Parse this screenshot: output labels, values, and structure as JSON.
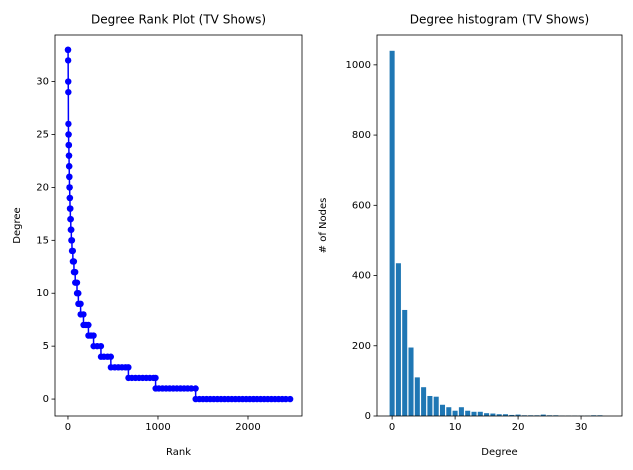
{
  "chart_data": [
    {
      "type": "line",
      "title": "Degree Rank Plot (TV Shows)",
      "x_label": "Rank",
      "y_label": "Degree",
      "color": "#0000ff",
      "markers": true,
      "x": [
        0,
        1,
        2,
        3,
        4,
        5,
        6,
        7,
        8,
        10,
        11,
        12,
        13,
        14,
        15,
        16,
        17,
        19,
        20,
        22,
        23,
        26,
        27,
        31,
        32,
        37,
        38,
        44,
        45,
        54,
        55,
        66,
        67,
        80,
        81,
        100,
        101,
        115,
        116,
        140,
        141,
        172,
        173,
        200,
        227,
        228,
        256,
        284,
        285,
        325,
        366,
        367,
        400,
        440,
        476,
        477,
        520,
        560,
        600,
        640,
        671,
        672,
        710,
        750,
        790,
        830,
        870,
        910,
        950,
        973,
        974,
        1010,
        1050,
        1090,
        1130,
        1170,
        1210,
        1250,
        1290,
        1330,
        1370,
        1418,
        1419,
        1460,
        1500,
        1540,
        1580,
        1620,
        1660,
        1700,
        1740,
        1780,
        1820,
        1860,
        1900,
        1940,
        1980,
        2020,
        2060,
        2100,
        2140,
        2180,
        2220,
        2260,
        2300,
        2340,
        2380,
        2420,
        2468
      ],
      "values": [
        33,
        33,
        32,
        30,
        29,
        26,
        25,
        25,
        24,
        24,
        23,
        23,
        22,
        22,
        21,
        21,
        20,
        20,
        19,
        19,
        18,
        18,
        17,
        17,
        16,
        16,
        15,
        15,
        14,
        14,
        13,
        13,
        12,
        12,
        11,
        11,
        10,
        10,
        9,
        9,
        8,
        8,
        7,
        7,
        7,
        6,
        6,
        6,
        5,
        5,
        5,
        4,
        4,
        4,
        4,
        3,
        3,
        3,
        3,
        3,
        3,
        2,
        2,
        2,
        2,
        2,
        2,
        2,
        2,
        2,
        1,
        1,
        1,
        1,
        1,
        1,
        1,
        1,
        1,
        1,
        1,
        1,
        0,
        0,
        0,
        0,
        0,
        0,
        0,
        0,
        0,
        0,
        0,
        0,
        0,
        0,
        0,
        0,
        0,
        0,
        0,
        0,
        0,
        0,
        0,
        0,
        0,
        0,
        0
      ],
      "xlim": [
        -144,
        2600
      ],
      "ylim": [
        -1.6,
        34.4
      ],
      "xticks": [
        0,
        1000,
        2000
      ],
      "yticks": [
        0,
        5,
        10,
        15,
        20,
        25,
        30
      ]
    },
    {
      "type": "bar",
      "title": "Degree histogram (TV Shows)",
      "x_label": "Degree",
      "y_label": "# of Nodes",
      "color": "#1f77b4",
      "bar_width": 0.8,
      "x": [
        0,
        1,
        2,
        3,
        4,
        5,
        6,
        7,
        8,
        9,
        10,
        11,
        12,
        13,
        14,
        15,
        16,
        17,
        18,
        19,
        20,
        21,
        22,
        23,
        24,
        25,
        26,
        27,
        28,
        29,
        30,
        31,
        32,
        33
      ],
      "values": [
        1040,
        435,
        302,
        195,
        110,
        82,
        57,
        55,
        32,
        25,
        15,
        25,
        15,
        12,
        12,
        8,
        7,
        5,
        5,
        3,
        4,
        2,
        2,
        2,
        4,
        2,
        2,
        1,
        1,
        1,
        1,
        1,
        2,
        2
      ],
      "xlim": [
        -2.4,
        36.5
      ],
      "ylim": [
        0,
        1085
      ],
      "xticks": [
        0,
        10,
        20,
        30
      ],
      "yticks": [
        0,
        200,
        400,
        600,
        800,
        1000
      ]
    }
  ]
}
